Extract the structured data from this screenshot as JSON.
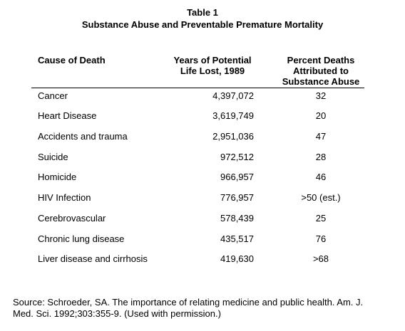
{
  "table": {
    "title": "Table 1",
    "subtitle": "Substance Abuse and Preventable Premature Mortality",
    "headers": {
      "cause": "Cause of Death",
      "years": [
        "Years of Potential",
        "Life Lost, 1989"
      ],
      "percent": [
        "Percent Deaths",
        "Attributed to",
        "Substance Abuse"
      ]
    },
    "rows": [
      {
        "cause": "Cancer",
        "years": "4,397,072",
        "percent": "32"
      },
      {
        "cause": "Heart Disease",
        "years": "3,619,749",
        "percent": "20"
      },
      {
        "cause": "Accidents and trauma",
        "years": "2,951,036",
        "percent": "47"
      },
      {
        "cause": "Suicide",
        "years": "972,512",
        "percent": "28"
      },
      {
        "cause": "Homicide",
        "years": "966,957",
        "percent": "46"
      },
      {
        "cause": "HIV Infection",
        "years": "776,957",
        "percent": ">50 (est.)"
      },
      {
        "cause": "Cerebrovascular",
        "years": "578,439",
        "percent": "25"
      },
      {
        "cause": "Chronic lung disease",
        "years": "435,517",
        "percent": "76"
      },
      {
        "cause": "Liver disease and cirrhosis",
        "years": "419,630",
        "percent": ">68"
      }
    ]
  },
  "source": {
    "line1": "Source: Schroeder, SA.  The importance of relating medicine and public health.  Am. J.",
    "line2": "Med. Sci. 1992;303:355-9.  (Used with permission.)"
  }
}
